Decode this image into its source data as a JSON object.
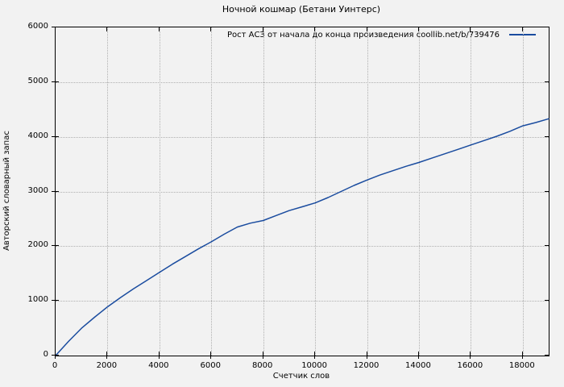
{
  "colors": {
    "background": "#f2f2f2",
    "line": "#1a4c9f",
    "grid": "#b0b0b0",
    "text": "#000000",
    "axis": "#000000"
  },
  "chart_data": {
    "type": "line",
    "title": "Ночной кошмар (Бетани Уинтерс)",
    "xlabel": "Счетчик слов",
    "ylabel": "Авторский словарный запас",
    "xlim": [
      0,
      19000
    ],
    "ylim": [
      0,
      6000
    ],
    "xticks": [
      0,
      2000,
      4000,
      6000,
      8000,
      10000,
      12000,
      14000,
      16000,
      18000
    ],
    "yticks": [
      0,
      1000,
      2000,
      3000,
      4000,
      5000,
      6000
    ],
    "grid": true,
    "grid_style": "dotted",
    "legend_position": "top-inside-right",
    "series": [
      {
        "name": "Рост АСЗ от начала до конца произведения coollib.net/b/739476",
        "color": "#1a4c9f",
        "x": [
          0,
          500,
          1000,
          1500,
          2000,
          2500,
          3000,
          3500,
          4000,
          4500,
          5000,
          5500,
          6000,
          6500,
          7000,
          7500,
          8000,
          8500,
          9000,
          9500,
          10000,
          10500,
          11000,
          11500,
          12000,
          12500,
          13000,
          13500,
          14000,
          14500,
          15000,
          15500,
          16000,
          16500,
          17000,
          17500,
          18000,
          18500,
          19000
        ],
        "y": [
          0,
          260,
          500,
          700,
          890,
          1060,
          1220,
          1370,
          1520,
          1670,
          1810,
          1950,
          2080,
          2220,
          2350,
          2420,
          2470,
          2560,
          2650,
          2720,
          2790,
          2890,
          3000,
          3110,
          3210,
          3300,
          3380,
          3460,
          3530,
          3610,
          3690,
          3770,
          3850,
          3930,
          4010,
          4100,
          4200,
          4260,
          4330
        ]
      }
    ]
  }
}
